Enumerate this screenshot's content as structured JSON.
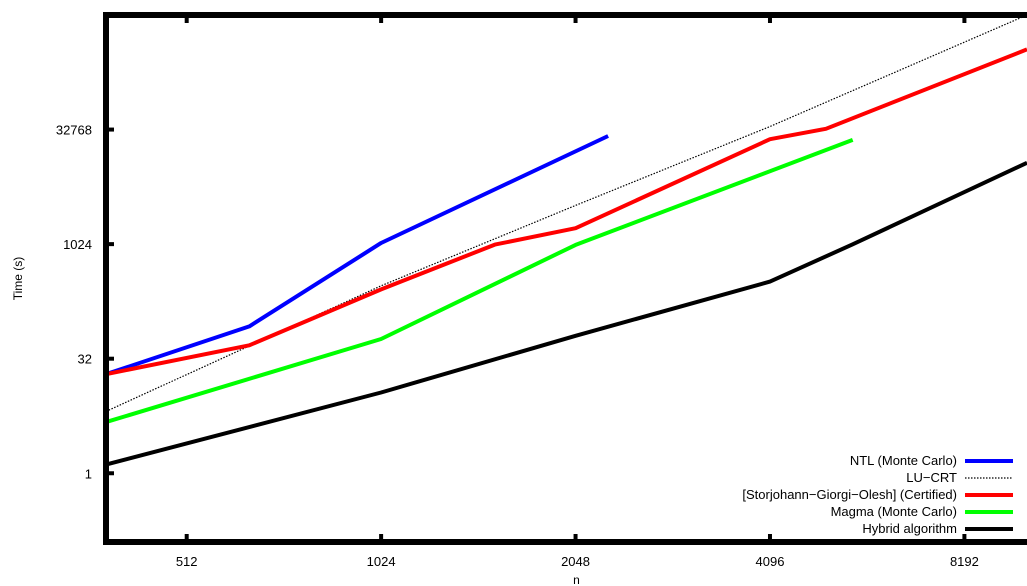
{
  "chart_data": {
    "type": "line",
    "title": "",
    "xlabel": "n",
    "ylabel": "Time (s)",
    "xscale": "log2",
    "yscale": "log2",
    "xlim": [
      384,
      10240
    ],
    "ylim": [
      0.125,
      1048576
    ],
    "xticks": [
      512,
      1024,
      2048,
      4096,
      8192
    ],
    "xtick_labels": [
      "512",
      "1024",
      "2048",
      "4096",
      "8192"
    ],
    "yticks": [
      1,
      32,
      1024,
      32768
    ],
    "ytick_labels": [
      "1",
      "32",
      "1024",
      "32768"
    ],
    "grid": false,
    "legend_position": "bottom-right",
    "series": [
      {
        "name": "NTL (Monte Carlo)",
        "color": "#0000ff",
        "style": "solid",
        "x": [
          384,
          640,
          1024,
          2300
        ],
        "y": [
          20,
          85,
          1060,
          27000
        ]
      },
      {
        "name": "LU−CRT",
        "color": "#000000",
        "style": "dotted",
        "x": [
          384,
          1024,
          2048,
          4096,
          10240
        ],
        "y": [
          6.5,
          290,
          3300,
          36000,
          1048576
        ]
      },
      {
        "name": "[Storjohann−Giorgi−Olesh] (Certified)",
        "color": "#ff0000",
        "style": "solid",
        "x": [
          384,
          640,
          1024,
          1536,
          2048,
          4096,
          5000,
          10240
        ],
        "y": [
          20,
          48,
          260,
          1010,
          1660,
          24500,
          33500,
          370000
        ]
      },
      {
        "name": "Magma (Monte Carlo)",
        "color": "#00ff00",
        "style": "solid",
        "x": [
          384,
          1024,
          2048,
          5500
        ],
        "y": [
          4.7,
          58,
          1000,
          24000
        ]
      },
      {
        "name": "Hybrid algorithm",
        "color": "#000000",
        "style": "solid",
        "x": [
          384,
          1024,
          2048,
          4096,
          5500,
          10240
        ],
        "y": [
          1.3,
          11.5,
          64,
          330,
          1020,
          12000
        ]
      }
    ]
  }
}
